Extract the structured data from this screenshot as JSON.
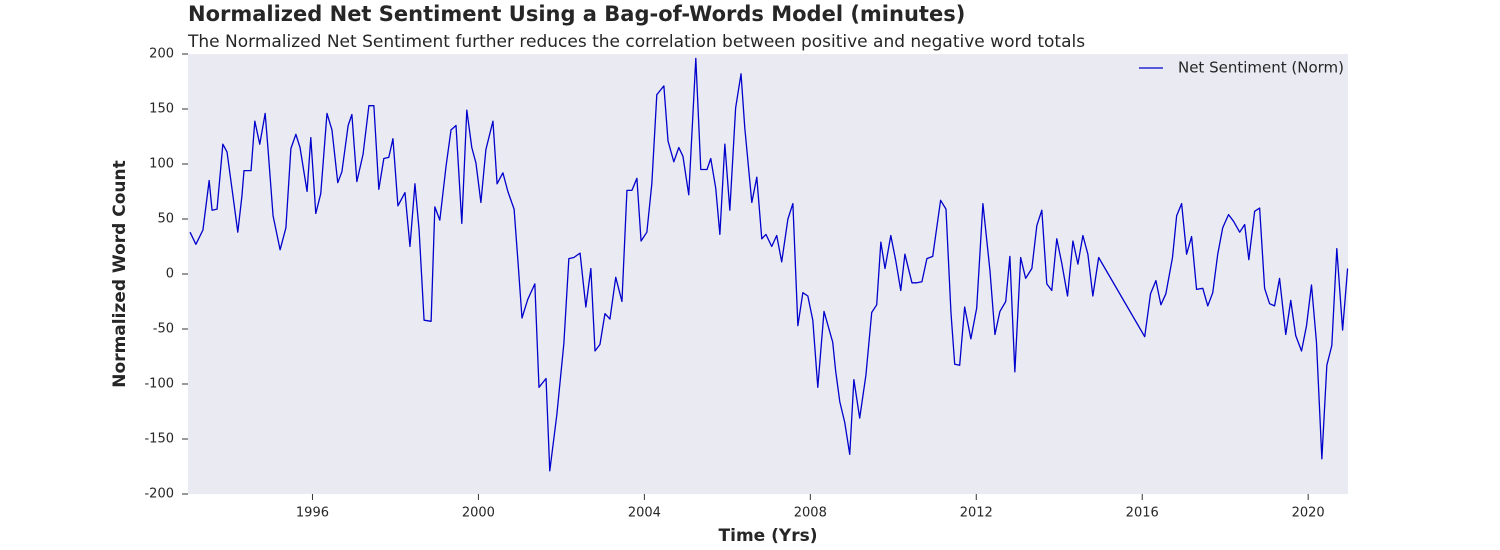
{
  "chart_data": {
    "type": "line",
    "title": "Normalized Net Sentiment Using a Bag-of-Words Model (minutes)",
    "subtitle": "The Normalized Net Sentiment further reduces the correlation between positive and negative word totals",
    "x_label": "Time (Yrs)",
    "y_label": "Normalized Word Count",
    "xlim": [
      1993.0,
      2020.96
    ],
    "xticks": [
      1996,
      2000,
      2004,
      2008,
      2012,
      2016,
      2020
    ],
    "ylim": [
      -200,
      200
    ],
    "yticks": [
      -200,
      -150,
      -100,
      -50,
      0,
      50,
      100,
      150,
      200
    ],
    "legend": "upper right",
    "x": [
      1993.05,
      1993.19,
      1993.36,
      1993.51,
      1993.58,
      1993.7,
      1993.84,
      1993.94,
      1994.08,
      1994.2,
      1994.3,
      1994.35,
      1994.47,
      1994.52,
      1994.61,
      1994.73,
      1994.86,
      1994.93,
      1995.05,
      1995.22,
      1995.36,
      1995.48,
      1995.6,
      1995.7,
      1995.87,
      1995.96,
      1996.08,
      1996.2,
      1996.35,
      1996.47,
      1996.61,
      1996.71,
      1996.86,
      1996.95,
      1997.07,
      1997.22,
      1997.36,
      1997.48,
      1997.6,
      1997.72,
      1997.84,
      1997.94,
      1998.06,
      1998.23,
      1998.35,
      1998.47,
      1998.57,
      1998.69,
      1998.86,
      1998.95,
      1999.07,
      1999.22,
      1999.34,
      1999.46,
      1999.6,
      1999.72,
      1999.84,
      1999.94,
      2000.06,
      2000.18,
      2000.35,
      2000.45,
      2000.59,
      2000.71,
      2000.86,
      2000.95,
      2001.05,
      2001.19,
      2001.36,
      2001.46,
      2001.63,
      2001.72,
      2001.89,
      2002.06,
      2002.18,
      2002.3,
      2002.45,
      2002.59,
      2002.71,
      2002.81,
      2002.93,
      2003.05,
      2003.17,
      2003.31,
      2003.46,
      2003.58,
      2003.7,
      2003.82,
      2003.92,
      2004.06,
      2004.18,
      2004.3,
      2004.47,
      2004.57,
      2004.71,
      2004.83,
      2004.93,
      2005.07,
      2005.24,
      2005.36,
      2005.51,
      2005.6,
      2005.72,
      2005.82,
      2005.94,
      2006.06,
      2006.2,
      2006.33,
      2006.42,
      2006.59,
      2006.71,
      2006.83,
      2006.93,
      2007.07,
      2007.19,
      2007.31,
      2007.46,
      2007.58,
      2007.7,
      2007.82,
      2007.94,
      2008.06,
      2008.18,
      2008.33,
      2008.54,
      2008.61,
      2008.71,
      2008.83,
      2008.95,
      2009.05,
      2009.19,
      2009.34,
      2009.48,
      2009.6,
      2009.7,
      2009.8,
      2009.94,
      2010.06,
      2010.18,
      2010.28,
      2010.45,
      2010.57,
      2010.69,
      2010.81,
      2010.95,
      2011.14,
      2011.27,
      2011.39,
      2011.48,
      2011.6,
      2011.72,
      2011.87,
      2012.01,
      2012.16,
      2012.33,
      2012.45,
      2012.57,
      2012.71,
      2012.81,
      2012.93,
      2013.07,
      2013.19,
      2013.34,
      2013.46,
      2013.58,
      2013.7,
      2013.82,
      2013.94,
      2014.06,
      2014.2,
      2014.33,
      2014.45,
      2014.57,
      2014.69,
      2014.81,
      2014.95,
      2016.06,
      2016.2,
      2016.33,
      2016.45,
      2016.57,
      2016.73,
      2016.83,
      2016.95,
      2017.07,
      2017.19,
      2017.31,
      2017.46,
      2017.58,
      2017.7,
      2017.82,
      2017.94,
      2018.08,
      2018.2,
      2018.35,
      2018.47,
      2018.57,
      2018.71,
      2018.83,
      2018.95,
      2019.07,
      2019.19,
      2019.31,
      2019.46,
      2019.58,
      2019.7,
      2019.84,
      2019.96,
      2020.08,
      2020.2,
      2020.33,
      2020.45,
      2020.57,
      2020.69,
      2020.83,
      2020.95
    ],
    "series": [
      {
        "name": "Net Sentiment (Norm)",
        "color": "#0000cd",
        "values": [
          38,
          27,
          40,
          85,
          58,
          59,
          118,
          111,
          72,
          38,
          71,
          94,
          94,
          94,
          139,
          118,
          146,
          113,
          53,
          22,
          42,
          114,
          127,
          115,
          75,
          124,
          55,
          73,
          146,
          131,
          83,
          93,
          135,
          145,
          84,
          109,
          153,
          153,
          77,
          105,
          106,
          123,
          62,
          74,
          25,
          82,
          40,
          -42,
          -43,
          61,
          49,
          98,
          131,
          135,
          46,
          149,
          115,
          101,
          65,
          113,
          139,
          82,
          92,
          75,
          59,
          13,
          -40,
          -23,
          -9,
          -103,
          -95,
          -179,
          -128,
          -63,
          14,
          15,
          19,
          -30,
          5,
          -70,
          -64,
          -36,
          -41,
          -3,
          -25,
          76,
          76,
          87,
          30,
          38,
          82,
          163,
          171,
          121,
          102,
          115,
          107,
          72,
          196,
          95,
          95,
          105,
          78,
          36,
          118,
          58,
          151,
          182,
          133,
          65,
          88,
          32,
          36,
          25,
          35,
          11,
          50,
          64,
          -47,
          -17,
          -20,
          -42,
          -103,
          -34,
          -62,
          -88,
          -116,
          -135,
          -164,
          -96,
          -131,
          -92,
          -35,
          -28,
          29,
          5,
          35,
          12,
          -15,
          18,
          -8,
          -8,
          -7,
          14,
          16,
          67,
          59,
          -35,
          -82,
          -83,
          -30,
          -59,
          -31,
          64,
          3,
          -55,
          -34,
          -25,
          16,
          -89,
          15,
          -4,
          5,
          44,
          58,
          -9,
          -15,
          32,
          10,
          -20,
          30,
          9,
          35,
          18,
          -20,
          15,
          -57,
          -18,
          -6,
          -28,
          -18,
          15,
          53,
          64,
          18,
          34,
          -14,
          -13,
          -29,
          -17,
          18,
          42,
          54,
          48,
          38,
          45,
          13,
          57,
          60,
          -13,
          -27,
          -29,
          -4,
          -55,
          -24,
          -56,
          -70,
          -47,
          -10,
          -62,
          -168,
          -83,
          -65,
          23,
          -51,
          5
        ]
      }
    ]
  }
}
